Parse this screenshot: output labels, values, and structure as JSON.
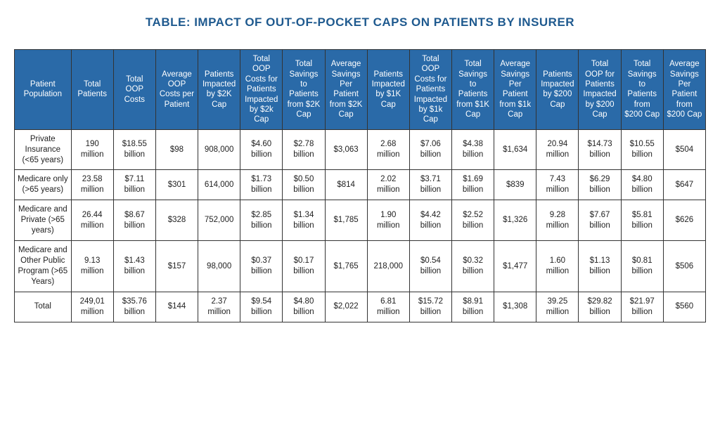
{
  "title": "TABLE: IMPACT OF OUT-OF-POCKET CAPS ON PATIENTS BY INSURER",
  "style": {
    "title_color": "#1f5a8f",
    "title_fontsize": 17,
    "header_bg": "#2a6aa8",
    "header_fontsize": 11.5,
    "cell_fontsize": 11.5,
    "border_color": "#333333",
    "col0_width_pct": 8.2,
    "coln_width_pct": 6.12
  },
  "columns": [
    "Patient Population",
    "Total Patients",
    "Total OOP Costs",
    "Average OOP Costs per Patient",
    "Patients Impacted by $2K Cap",
    "Total OOP Costs for Patients Impacted by $2k Cap",
    "Total Savings to Patients from $2K Cap",
    "Average Savings Per Patient from $2K Cap",
    "Patients Impacted by $1K Cap",
    "Total OOP Costs for Patients Impacted by $1k Cap",
    "Total Savings to Patients from $1K Cap",
    "Average Savings Per Patient from $1k Cap",
    "Patients Impacted by $200 Cap",
    "Total OOP for Patients Impacted by $200 Cap",
    "Total Savings to Patients from $200 Cap",
    "Average Savings Per Patient from $200 Cap"
  ],
  "rows": [
    [
      "Private Insurance (<65 years)",
      "190 million",
      "$18.55 billion",
      "$98",
      "908,000",
      "$4.60 billion",
      "$2.78 billion",
      "$3,063",
      "2.68 million",
      "$7.06 billion",
      "$4.38 billion",
      "$1,634",
      "20.94 million",
      "$14.73 billion",
      "$10.55 billion",
      "$504"
    ],
    [
      "Medicare only (>65 years)",
      "23.58 million",
      "$7.11 billion",
      "$301",
      "614,000",
      "$1.73 billion",
      "$0.50 billion",
      "$814",
      "2.02 million",
      "$3.71 billion",
      "$1.69 billion",
      "$839",
      "7.43 million",
      "$6.29 billion",
      "$4.80 billion",
      "$647"
    ],
    [
      "Medicare and Private (>65 years)",
      "26.44 million",
      "$8.67 billion",
      "$328",
      "752,000",
      "$2.85 billion",
      "$1.34 billion",
      "$1,785",
      "1.90 million",
      "$4.42 billion",
      "$2.52 billion",
      "$1,326",
      "9.28 million",
      "$7.67 billion",
      "$5.81 billion",
      "$626"
    ],
    [
      "Medicare and Other Public Program (>65 Years)",
      "9.13 million",
      "$1.43 billion",
      "$157",
      "98,000",
      "$0.37 billion",
      "$0.17 billion",
      "$1,765",
      "218,000",
      "$0.54 billion",
      "$0.32 billion",
      "$1,477",
      "1.60 million",
      "$1.13 billion",
      "$0.81 billion",
      "$506"
    ],
    [
      "Total",
      "249,01 million",
      "$35.76 billion",
      "$144",
      "2.37 million",
      "$9.54 billion",
      "$4.80 billion",
      "$2,022",
      "6.81 million",
      "$15.72 billion",
      "$8.91 billion",
      "$1,308",
      "39.25 million",
      "$29.82 billion",
      "$21.97 billion",
      "$560"
    ]
  ]
}
